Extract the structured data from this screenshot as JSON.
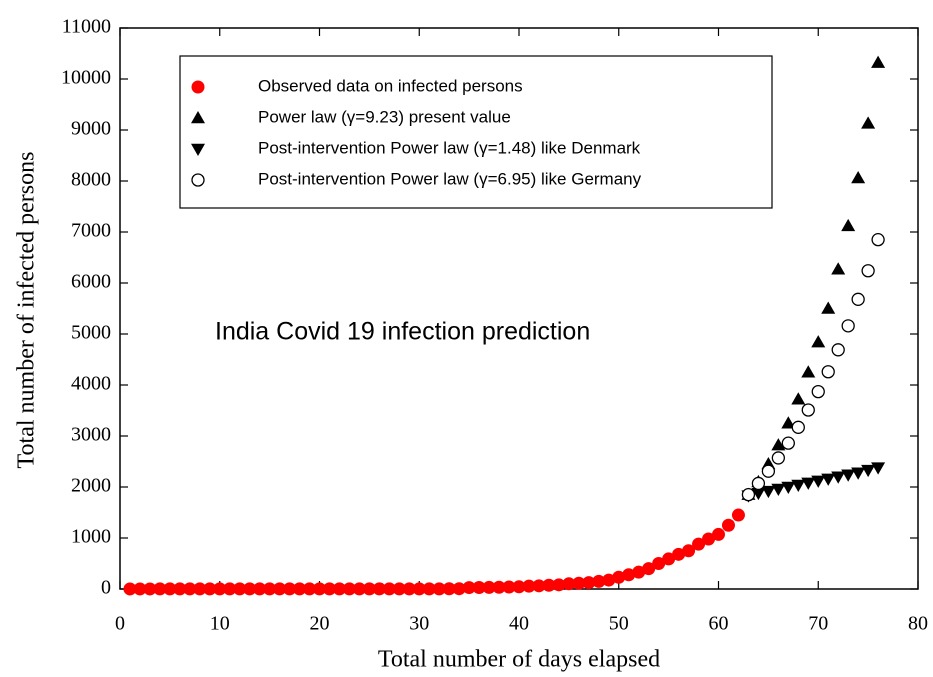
{
  "chart_data": {
    "type": "scatter",
    "annotation": "India Covid 19 infection prediction",
    "x_label": "Total number of days elapsed",
    "y_label": "Total number of infected persons",
    "xlim": [
      0,
      80
    ],
    "xticks": [
      0,
      10,
      20,
      30,
      40,
      50,
      60,
      70,
      80
    ],
    "ylim": [
      0,
      11000
    ],
    "yticks": [
      0,
      1000,
      2000,
      3000,
      4000,
      5000,
      6000,
      7000,
      8000,
      9000,
      10000,
      11000
    ],
    "legend": "upper left",
    "series": [
      {
        "name": "Observed data on infected persons",
        "color": "#ff0000",
        "marker": "circle-filled",
        "x": [
          1,
          2,
          3,
          4,
          5,
          6,
          7,
          8,
          9,
          10,
          11,
          12,
          13,
          14,
          15,
          16,
          17,
          18,
          19,
          20,
          21,
          22,
          23,
          24,
          25,
          26,
          27,
          28,
          29,
          30,
          31,
          32,
          33,
          34,
          35,
          36,
          37,
          38,
          39,
          40,
          41,
          42,
          43,
          44,
          45,
          46,
          47,
          48,
          49,
          50,
          51,
          52,
          53,
          54,
          55,
          56,
          57,
          58,
          59,
          60,
          61,
          62,
          63
        ],
        "values": [
          1,
          1,
          1,
          2,
          3,
          3,
          3,
          3,
          3,
          3,
          3,
          3,
          3,
          3,
          3,
          3,
          3,
          3,
          3,
          3,
          3,
          3,
          3,
          3,
          3,
          3,
          3,
          3,
          3,
          3,
          3,
          3,
          5,
          6,
          28,
          30,
          31,
          34,
          39,
          43,
          56,
          62,
          73,
          82,
          102,
          113,
          125,
          150,
          175,
          230,
          280,
          330,
          400,
          500,
          590,
          680,
          750,
          880,
          980,
          1070,
          1250,
          1450,
          1850
        ]
      },
      {
        "name": " Power law (γ=9.23) present value",
        "color": "#000000",
        "marker": "triangle-up",
        "x": [
          63,
          64,
          65,
          66,
          67,
          68,
          69,
          70,
          71,
          72,
          73,
          74,
          75,
          76
        ],
        "values": [
          1850,
          2100,
          2450,
          2820,
          3250,
          3720,
          4250,
          4840,
          5500,
          6270,
          7120,
          8060,
          9130,
          10320
        ]
      },
      {
        "name": "Post-intervention Power law (γ=1.48) like Denmark",
        "color": "#000000",
        "marker": "triangle-down",
        "x": [
          63,
          64,
          65,
          66,
          67,
          68,
          69,
          70,
          71,
          72,
          73,
          74,
          75,
          76
        ],
        "values": [
          1830,
          1880,
          1920,
          1960,
          2000,
          2040,
          2080,
          2120,
          2160,
          2200,
          2240,
          2280,
          2330,
          2380
        ]
      },
      {
        "name": "Post-intervention Power law (γ=6.95) like Germany",
        "color": "#000000",
        "marker": "circle-open",
        "x": [
          63,
          64,
          65,
          66,
          67,
          68,
          69,
          70,
          71,
          72,
          73,
          74,
          75,
          76
        ],
        "values": [
          1850,
          2070,
          2310,
          2570,
          2860,
          3170,
          3510,
          3870,
          4260,
          4690,
          5160,
          5680,
          6240,
          6850
        ]
      }
    ]
  }
}
